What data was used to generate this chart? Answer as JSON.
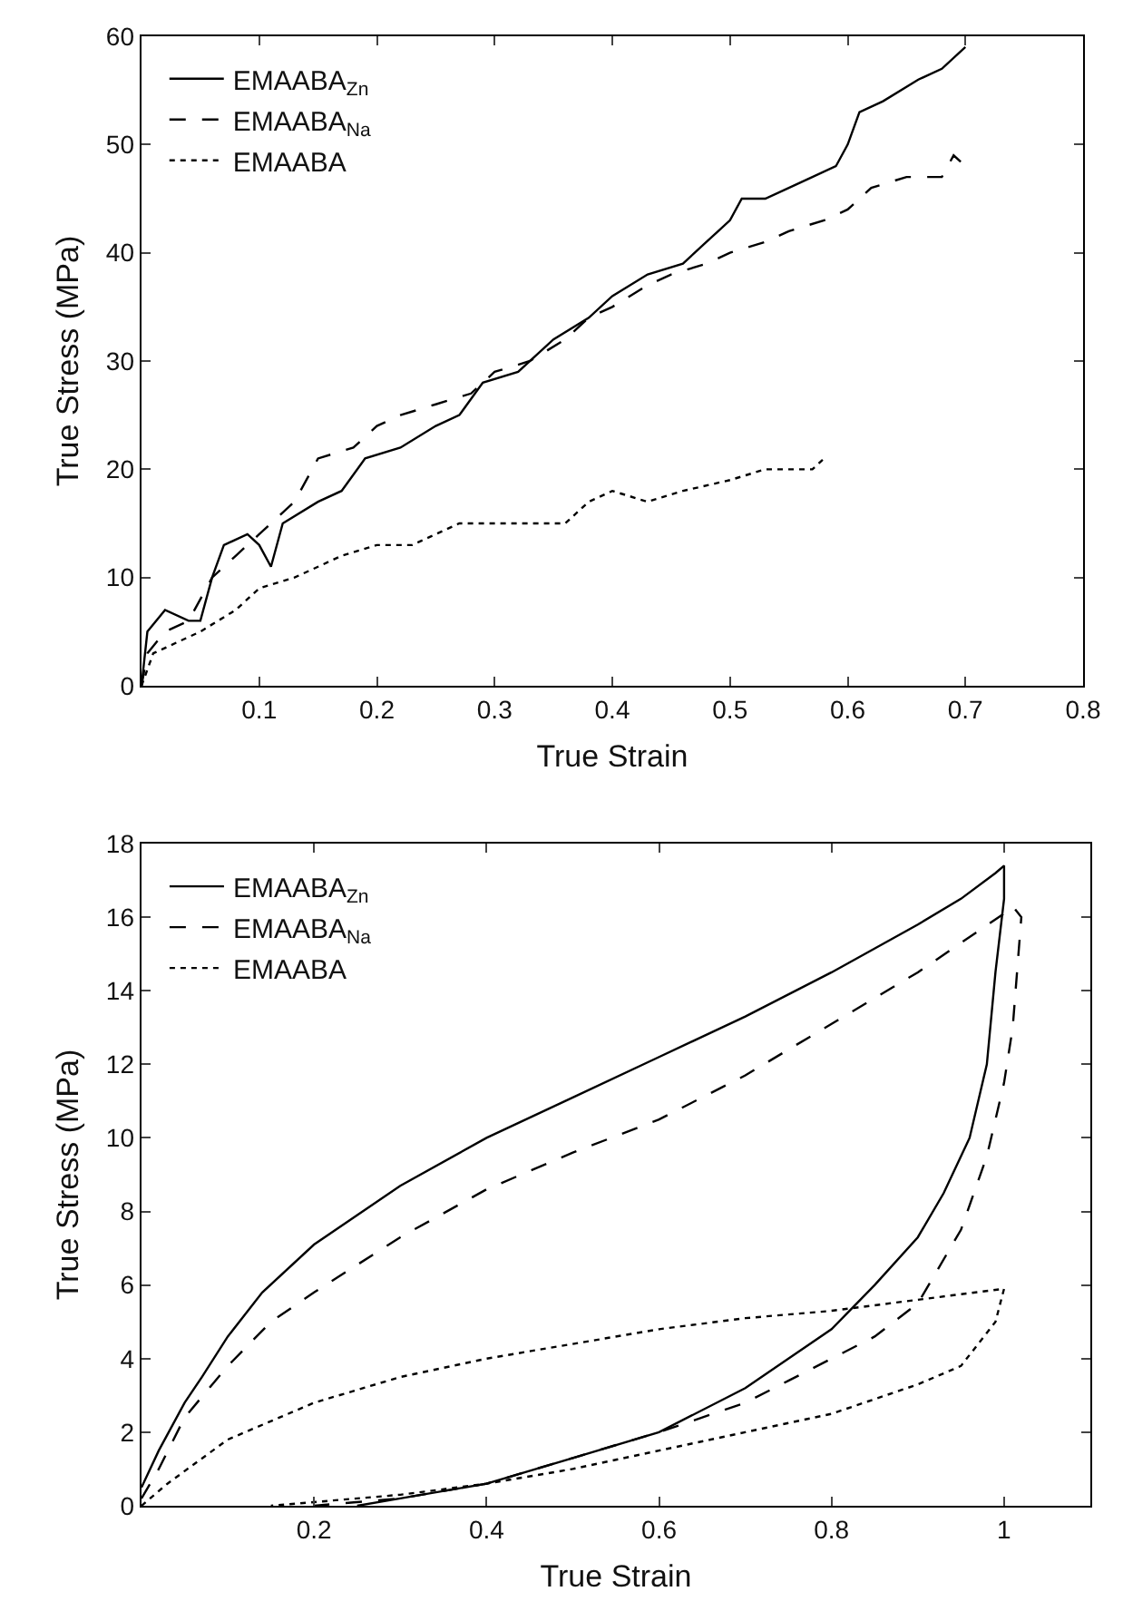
{
  "chart_data": [
    {
      "type": "line",
      "xlabel": "True Strain",
      "ylabel": "True Stress (MPa)",
      "xlim": [
        0,
        0.8
      ],
      "ylim": [
        0,
        60
      ],
      "xticks": [
        0.1,
        0.2,
        0.3,
        0.4,
        0.5,
        0.6,
        0.7,
        0.8
      ],
      "yticks": [
        0,
        10,
        20,
        30,
        40,
        50,
        60
      ],
      "grid": false,
      "legend": "top left",
      "marker": "none",
      "series": [
        {
          "name": "EMAABA$_{Zn}$",
          "color": "#000000",
          "line_style": "solid",
          "x": [
            0,
            0.005,
            0.02,
            0.04,
            0.05,
            0.06,
            0.07,
            0.09,
            0.1,
            0.11,
            0.12,
            0.15,
            0.17,
            0.19,
            0.22,
            0.25,
            0.27,
            0.29,
            0.32,
            0.35,
            0.38,
            0.4,
            0.43,
            0.46,
            0.48,
            0.5,
            0.51,
            0.53,
            0.55,
            0.57,
            0.59,
            0.6,
            0.61,
            0.63,
            0.66,
            0.68,
            0.7
          ],
          "values": [
            0,
            5,
            7,
            6,
            6,
            10,
            13,
            14,
            13,
            11,
            15,
            17,
            18,
            21,
            22,
            24,
            25,
            28,
            29,
            32,
            34,
            36,
            38,
            39,
            41,
            43,
            45,
            45,
            46,
            47,
            48,
            50,
            53,
            54,
            56,
            57,
            59
          ]
        },
        {
          "name": "EMAABA$_{Na}$",
          "color": "#000000",
          "line_style": "dashed",
          "x": [
            0,
            0.005,
            0.02,
            0.04,
            0.06,
            0.08,
            0.1,
            0.13,
            0.15,
            0.18,
            0.2,
            0.22,
            0.25,
            0.28,
            0.3,
            0.33,
            0.36,
            0.38,
            0.4,
            0.43,
            0.45,
            0.48,
            0.5,
            0.53,
            0.55,
            0.58,
            0.6,
            0.62,
            0.65,
            0.68,
            0.69,
            0.7
          ],
          "values": [
            0,
            3,
            5,
            6,
            10,
            12,
            14,
            17,
            21,
            22,
            24,
            25,
            26,
            27,
            29,
            30,
            32,
            34,
            35,
            37,
            38,
            39,
            40,
            41,
            42,
            43,
            44,
            46,
            47,
            47,
            49,
            48
          ]
        },
        {
          "name": "EMAABA",
          "color": "#000000",
          "line_style": "dotted",
          "x": [
            0,
            0.01,
            0.03,
            0.05,
            0.08,
            0.1,
            0.13,
            0.17,
            0.2,
            0.23,
            0.27,
            0.3,
            0.33,
            0.36,
            0.38,
            0.4,
            0.43,
            0.46,
            0.5,
            0.53,
            0.55,
            0.57,
            0.58
          ],
          "values": [
            0,
            3,
            4,
            5,
            7,
            9,
            10,
            12,
            13,
            13,
            15,
            15,
            15,
            15,
            17,
            18,
            17,
            18,
            19,
            20,
            20,
            20,
            21
          ]
        }
      ]
    },
    {
      "type": "line",
      "xlabel": "True Strain",
      "ylabel": "True Stress (MPa)",
      "xlim": [
        0,
        1.1
      ],
      "ylim": [
        0,
        18
      ],
      "xticks": [
        0.2,
        0.4,
        0.6,
        0.8,
        1
      ],
      "yticks": [
        0,
        2,
        4,
        6,
        8,
        10,
        12,
        14,
        16,
        18
      ],
      "grid": false,
      "legend": "top left",
      "marker": "none",
      "series": [
        {
          "name": "EMAABA$_{Zn}$",
          "color": "#000000",
          "line_style": "solid",
          "x": [
            0,
            0.02,
            0.05,
            0.07,
            0.1,
            0.14,
            0.2,
            0.3,
            0.4,
            0.5,
            0.6,
            0.7,
            0.8,
            0.9,
            0.95,
            0.99,
            1.0,
            1.0,
            0.99,
            0.98,
            0.96,
            0.93,
            0.9,
            0.85,
            0.8,
            0.75,
            0.7,
            0.6,
            0.5,
            0.4,
            0.3,
            0.25
          ],
          "values": [
            0.5,
            1.5,
            2.8,
            3.5,
            4.6,
            5.8,
            7.1,
            8.7,
            10,
            11.1,
            12.2,
            13.3,
            14.5,
            15.8,
            16.5,
            17.2,
            17.4,
            16.5,
            14.5,
            12,
            10,
            8.5,
            7.3,
            6,
            4.8,
            4,
            3.2,
            2,
            1.3,
            0.6,
            0.2,
            0
          ]
        },
        {
          "name": "EMAABA$_{Na}$",
          "color": "#000000",
          "line_style": "dashed",
          "x": [
            0,
            0.02,
            0.05,
            0.1,
            0.15,
            0.2,
            0.3,
            0.4,
            0.5,
            0.6,
            0.7,
            0.8,
            0.9,
            0.95,
            1.0,
            1.01,
            1.02,
            1.01,
            1.0,
            0.98,
            0.95,
            0.9,
            0.85,
            0.8,
            0.75,
            0.7,
            0.6,
            0.5,
            0.4,
            0.3,
            0.2
          ],
          "values": [
            0.2,
            1,
            2.4,
            3.8,
            5,
            5.8,
            7.3,
            8.6,
            9.6,
            10.5,
            11.7,
            13.1,
            14.5,
            15.3,
            16.1,
            16.3,
            16,
            13,
            11.5,
            9.5,
            7.5,
            5.5,
            4.6,
            4,
            3.4,
            2.8,
            2,
            1.3,
            0.6,
            0.2,
            0
          ]
        },
        {
          "name": "EMAABA",
          "color": "#000000",
          "line_style": "dotted",
          "x": [
            0,
            0.03,
            0.1,
            0.2,
            0.3,
            0.4,
            0.5,
            0.6,
            0.7,
            0.8,
            0.9,
            1.0,
            0.99,
            0.95,
            0.9,
            0.8,
            0.7,
            0.6,
            0.5,
            0.4,
            0.3,
            0.2,
            0.15
          ],
          "values": [
            0,
            0.6,
            1.8,
            2.8,
            3.5,
            4,
            4.4,
            4.8,
            5.1,
            5.3,
            5.6,
            5.9,
            5,
            3.8,
            3.3,
            2.5,
            2,
            1.5,
            1,
            0.6,
            0.3,
            0.1,
            0
          ]
        }
      ]
    }
  ]
}
